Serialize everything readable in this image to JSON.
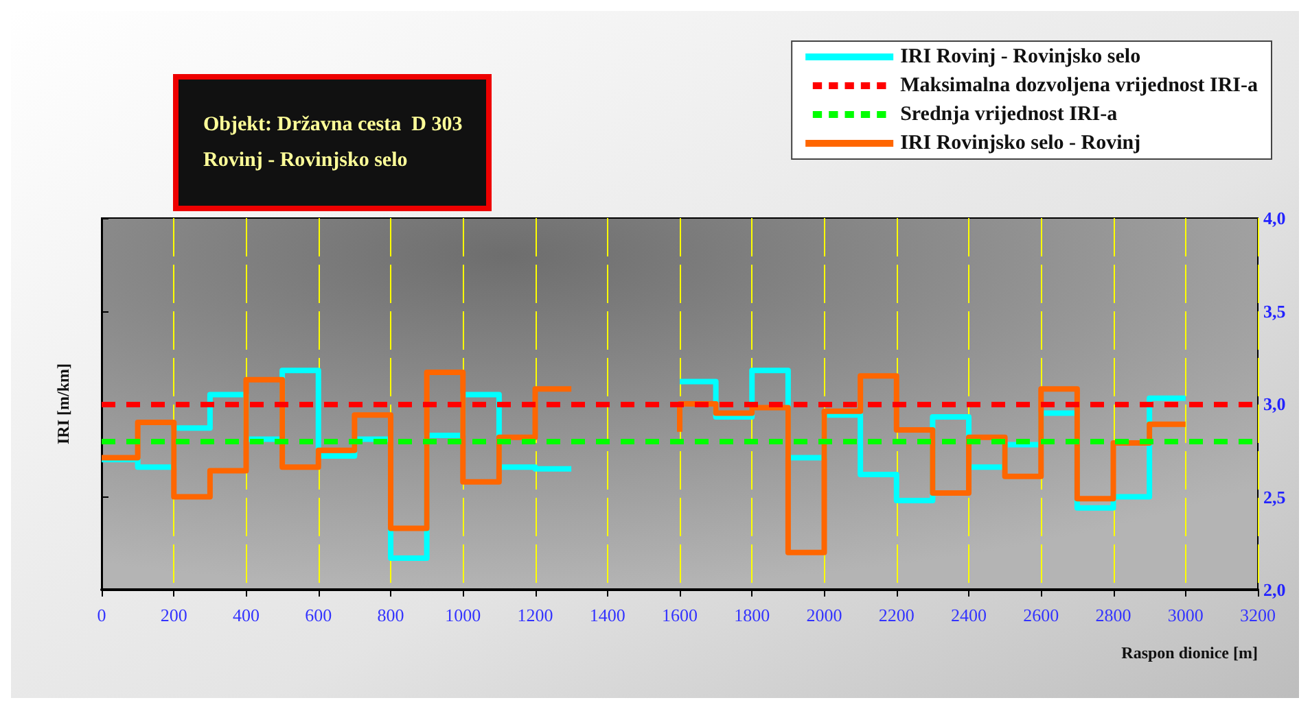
{
  "chart_data": {
    "type": "step",
    "title": "Objekt: Državna cesta  D 303\nRovinj - Rovinjsko selo",
    "xlabel": "Raspon dionice [m]",
    "ylabel": "IRI [m/km]",
    "x": [
      0,
      100,
      200,
      300,
      400,
      500,
      600,
      700,
      800,
      900,
      1000,
      1100,
      1200,
      1300,
      1400,
      1600,
      1700,
      1800,
      1900,
      2000,
      2100,
      2200,
      2300,
      2400,
      2500,
      2600,
      2700,
      2800,
      2900,
      3000
    ],
    "series": [
      {
        "name": "IRI Rovinj - Rovinjsko selo",
        "color": "#00ffff",
        "line_style": "solid",
        "values": [
          2.7,
          2.7,
          2.66,
          2.87,
          3.05,
          2.81,
          3.18,
          2.72,
          2.81,
          2.17,
          2.83,
          3.05,
          2.66,
          2.65,
          null,
          3.12,
          3.12,
          2.93,
          3.18,
          2.71,
          2.94,
          2.62,
          2.48,
          2.93,
          2.66,
          2.78,
          2.95,
          2.44,
          2.5,
          3.03
        ]
      },
      {
        "name": "IRI Rovinjsko selo - Rovinj",
        "color": "#ff6600",
        "line_style": "solid",
        "values": [
          2.71,
          2.71,
          2.9,
          2.5,
          2.64,
          3.13,
          2.66,
          2.75,
          2.94,
          2.33,
          3.17,
          2.58,
          2.82,
          3.08,
          null,
          2.85,
          3.0,
          2.95,
          2.98,
          2.2,
          2.96,
          3.15,
          2.86,
          2.52,
          2.82,
          2.61,
          3.08,
          2.49,
          2.79,
          2.89
        ]
      }
    ],
    "xlim": [
      0,
      3200
    ],
    "xticks": [
      0,
      200,
      400,
      600,
      800,
      1000,
      1200,
      1400,
      1600,
      1800,
      2000,
      2200,
      2400,
      2600,
      2800,
      3000,
      3200
    ],
    "ylim": [
      2.0,
      4.0
    ],
    "yticks": [
      {
        "value": 2.0,
        "label": "2,0"
      },
      {
        "value": 2.5,
        "label": "2,5"
      },
      {
        "value": 3.0,
        "label": "3,0"
      },
      {
        "value": 3.5,
        "label": "3,5"
      },
      {
        "value": 4.0,
        "label": "4,0"
      }
    ],
    "ref_lines": [
      {
        "axis": "y",
        "value": 3.0,
        "label": "Maksimalna dozvoljena vrijednost IRI-a",
        "color": "#ff0000",
        "line_style": "dashed"
      },
      {
        "axis": "y",
        "value": 2.8,
        "label": "Srednja vrijednost IRI-a",
        "color": "#00ff00",
        "line_style": "dashed"
      }
    ],
    "grid": "x",
    "legend": "top right",
    "marker": "none"
  }
}
